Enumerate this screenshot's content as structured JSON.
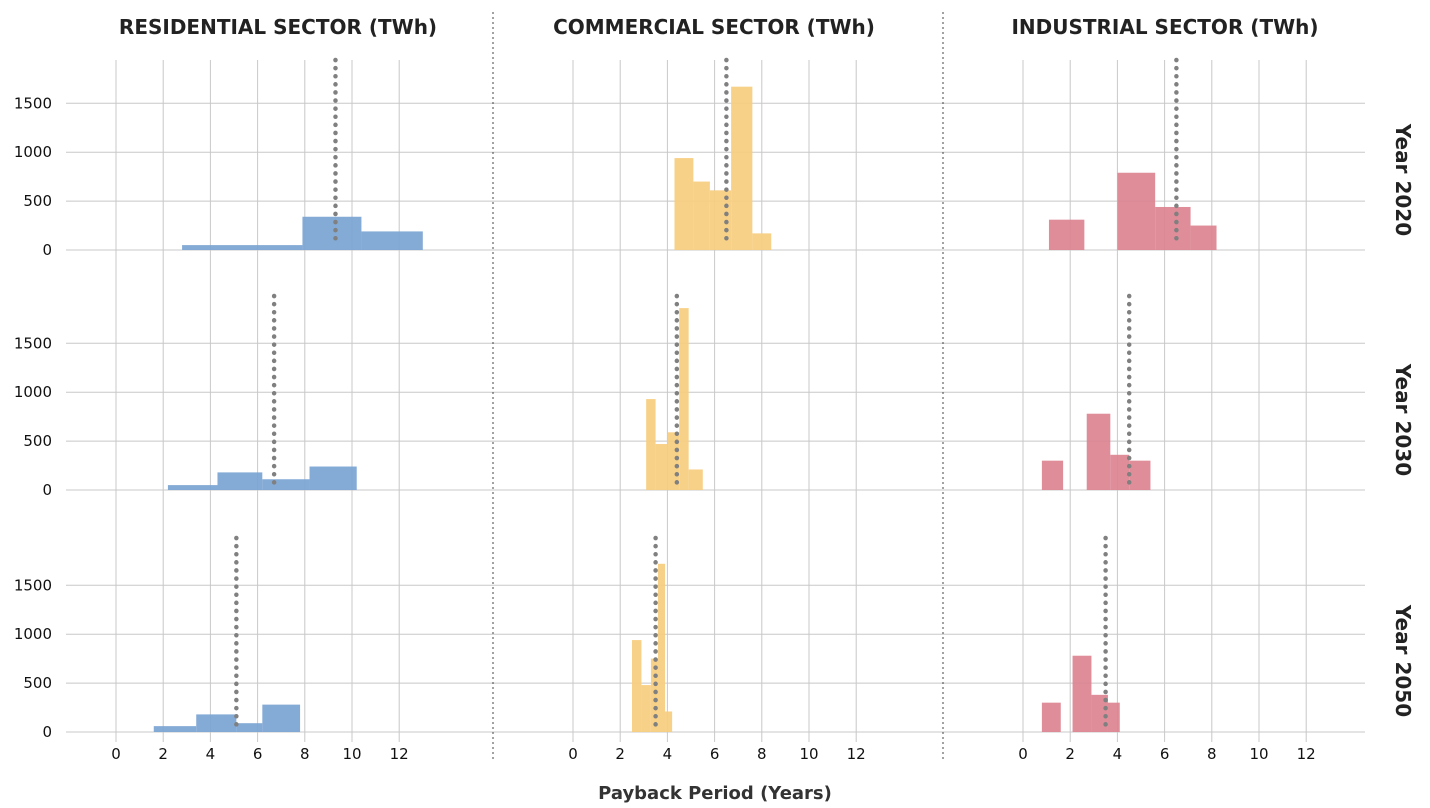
{
  "chart_data": {
    "type": "bar",
    "xlabel": "Payback Period (Years)",
    "columns": [
      "RESIDENTIAL SECTOR (TWh)",
      "COMMERCIAL SECTOR (TWh)",
      "INDUSTRIAL SECTOR (TWh)"
    ],
    "rows": [
      "Year 2020",
      "Year 2030",
      "Year 2050"
    ],
    "xticks": [
      0,
      2,
      4,
      6,
      8,
      10,
      12
    ],
    "yticks": [
      0,
      500,
      1000,
      1500
    ],
    "xlim": [
      -1,
      13.8
    ],
    "ylim": [
      0,
      1950
    ],
    "grid": true,
    "colors": {
      "RESIDENTIAL SECTOR (TWh)": "#7aa3d3",
      "COMMERCIAL SECTOR (TWh)": "#f7cd7e",
      "INDUSTRIAL SECTOR (TWh)": "#db8390",
      "median_line": "#808080"
    },
    "panels": [
      [
        {
          "median": 9.3,
          "bars": [
            {
              "x0": 2.8,
              "x1": 7.9,
              "value": 50
            },
            {
              "x0": 7.9,
              "x1": 10.4,
              "value": 340
            },
            {
              "x0": 10.4,
              "x1": 13.0,
              "value": 190
            }
          ]
        },
        {
          "median": 6.5,
          "bars": [
            {
              "x0": 4.3,
              "x1": 5.1,
              "value": 940
            },
            {
              "x0": 5.1,
              "x1": 5.8,
              "value": 700
            },
            {
              "x0": 5.8,
              "x1": 6.7,
              "value": 610
            },
            {
              "x0": 6.7,
              "x1": 7.6,
              "value": 1670
            },
            {
              "x0": 7.6,
              "x1": 8.4,
              "value": 170
            }
          ]
        },
        {
          "median": 6.5,
          "bars": [
            {
              "x0": 1.1,
              "x1": 2.6,
              "value": 310
            },
            {
              "x0": 4.0,
              "x1": 5.6,
              "value": 790
            },
            {
              "x0": 5.6,
              "x1": 7.1,
              "value": 440
            },
            {
              "x0": 7.1,
              "x1": 8.2,
              "value": 250
            }
          ]
        }
      ],
      [
        {
          "median": 6.7,
          "bars": [
            {
              "x0": 2.2,
              "x1": 4.3,
              "value": 50
            },
            {
              "x0": 4.3,
              "x1": 6.2,
              "value": 180
            },
            {
              "x0": 6.2,
              "x1": 8.2,
              "value": 110
            },
            {
              "x0": 8.2,
              "x1": 10.2,
              "value": 240
            }
          ]
        },
        {
          "median": 4.4,
          "bars": [
            {
              "x0": 3.1,
              "x1": 3.5,
              "value": 930
            },
            {
              "x0": 3.5,
              "x1": 4.0,
              "value": 470
            },
            {
              "x0": 4.0,
              "x1": 4.5,
              "value": 590
            },
            {
              "x0": 4.5,
              "x1": 4.9,
              "value": 1860
            },
            {
              "x0": 4.9,
              "x1": 5.5,
              "value": 210
            }
          ]
        },
        {
          "median": 4.5,
          "bars": [
            {
              "x0": 0.8,
              "x1": 1.7,
              "value": 300
            },
            {
              "x0": 2.7,
              "x1": 3.7,
              "value": 780
            },
            {
              "x0": 3.7,
              "x1": 4.5,
              "value": 360
            },
            {
              "x0": 4.5,
              "x1": 5.4,
              "value": 300
            }
          ]
        }
      ],
      [
        {
          "median": 5.1,
          "bars": [
            {
              "x0": 1.6,
              "x1": 3.4,
              "value": 60
            },
            {
              "x0": 3.4,
              "x1": 5.1,
              "value": 180
            },
            {
              "x0": 5.1,
              "x1": 6.2,
              "value": 90
            },
            {
              "x0": 6.2,
              "x1": 7.8,
              "value": 280
            }
          ]
        },
        {
          "median": 3.5,
          "bars": [
            {
              "x0": 2.5,
              "x1": 2.9,
              "value": 940
            },
            {
              "x0": 2.9,
              "x1": 3.3,
              "value": 480
            },
            {
              "x0": 3.3,
              "x1": 3.6,
              "value": 750
            },
            {
              "x0": 3.6,
              "x1": 3.9,
              "value": 1720
            },
            {
              "x0": 3.9,
              "x1": 4.2,
              "value": 210
            }
          ]
        },
        {
          "median": 3.5,
          "bars": [
            {
              "x0": 0.8,
              "x1": 1.6,
              "value": 300
            },
            {
              "x0": 2.1,
              "x1": 2.9,
              "value": 780
            },
            {
              "x0": 2.9,
              "x1": 3.6,
              "value": 380
            },
            {
              "x0": 3.6,
              "x1": 4.1,
              "value": 300
            }
          ]
        }
      ]
    ]
  }
}
